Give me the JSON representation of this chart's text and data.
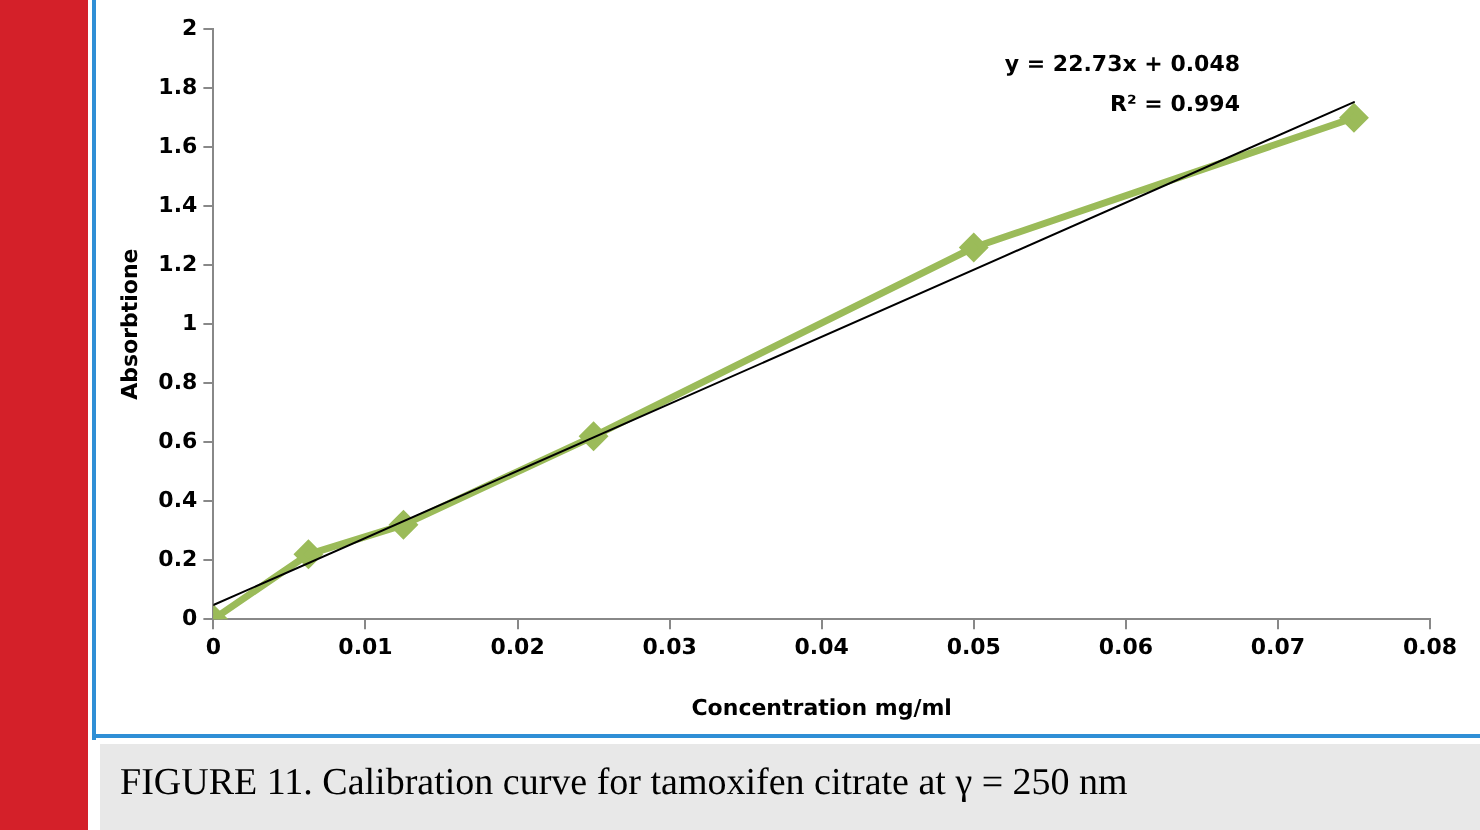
{
  "chart_data": {
    "type": "line",
    "xlabel": "Concentration mg/ml",
    "ylabel": "Absorbtione",
    "x": [
      0,
      0.00625,
      0.0125,
      0.025,
      0.05,
      0.075
    ],
    "series": [
      {
        "color": "#9bbb59",
        "values": [
          0.0,
          0.22,
          0.32,
          0.62,
          1.26,
          1.7
        ],
        "marker": "diamond"
      },
      {
        "color": "#000000",
        "x": [
          0,
          0.075
        ],
        "values": [
          0.048,
          1.753
        ],
        "marker": "none"
      }
    ],
    "xlim": [
      0,
      0.08
    ],
    "xticks": [
      0,
      0.01,
      0.02,
      0.03,
      0.04,
      0.05,
      0.06,
      0.07,
      0.08
    ],
    "ylim": [
      0,
      2
    ],
    "yticks": [
      0,
      0.2,
      0.4,
      0.6,
      0.8,
      1,
      1.2,
      1.4,
      1.6,
      1.8,
      2
    ],
    "annotations": [
      "y = 22.73x + 0.048",
      "R² = 0.994",
      "FIGURE 11. Calibration curve for tamoxifen citrate at γ = 250 nm"
    ]
  }
}
